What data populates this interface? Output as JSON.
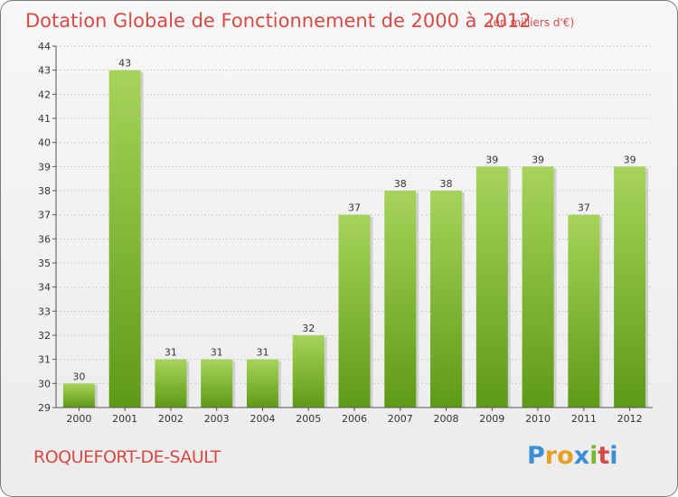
{
  "header": {
    "title": "Dotation Globale de Fonctionnement de 2000 à 2012",
    "unit": "(en milliers d'€)"
  },
  "commune": "ROQUEFORT-DE-SAULT",
  "logo": {
    "text": "Proxiti",
    "colors": [
      "#3a8fd8",
      "#e8a020",
      "#e8a020",
      "#3a8fd8",
      "#7ab830",
      "#d64a46"
    ]
  },
  "colors": {
    "bar_light": "#a6d45a",
    "bar_dark": "#5e9a16",
    "title": "#d64a46",
    "grid": "#cccccc"
  },
  "chart_data": {
    "type": "bar",
    "title": "Dotation Globale de Fonctionnement de 2000 à 2012",
    "subtitle": "(en milliers d'€)",
    "xlabel": "",
    "ylabel": "",
    "categories": [
      "2000",
      "2001",
      "2002",
      "2003",
      "2004",
      "2005",
      "2006",
      "2007",
      "2008",
      "2009",
      "2010",
      "2011",
      "2012"
    ],
    "values": [
      30,
      43,
      31,
      31,
      31,
      32,
      37,
      38,
      38,
      39,
      39,
      37,
      39
    ],
    "ylim": [
      29,
      44
    ],
    "yticks": [
      29,
      30,
      31,
      32,
      33,
      34,
      35,
      36,
      37,
      38,
      39,
      40,
      41,
      42,
      43,
      44
    ],
    "grid": true,
    "legend": "none"
  }
}
